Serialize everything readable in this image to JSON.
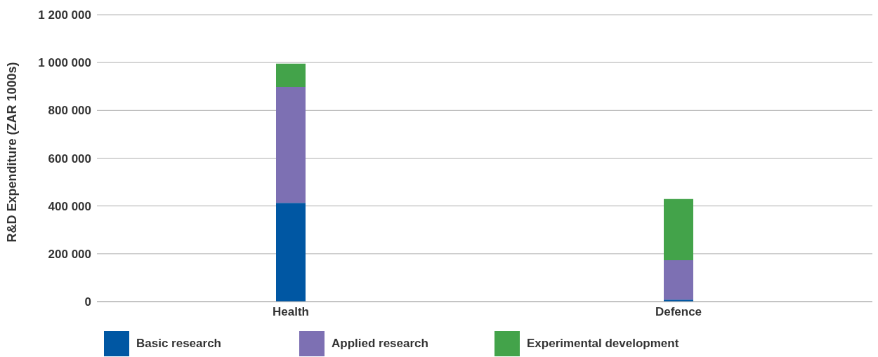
{
  "chart_data": {
    "type": "bar",
    "stacked": true,
    "ylabel": "R&D Expenditure (ZAR 1000s)",
    "categories": [
      "Health",
      "Defence"
    ],
    "series": [
      {
        "name": "Basic research",
        "color": "#0057a3",
        "values": [
          413000,
          8000
        ]
      },
      {
        "name": "Applied research",
        "color": "#7d70b3",
        "values": [
          485000,
          165000
        ]
      },
      {
        "name": "Experimental development",
        "color": "#43a34a",
        "values": [
          97000,
          256000
        ]
      }
    ],
    "ylim": [
      0,
      1200000
    ],
    "yticks": [
      {
        "value": 0,
        "label": "0"
      },
      {
        "value": 200000,
        "label": "200 000"
      },
      {
        "value": 400000,
        "label": "400 000"
      },
      {
        "value": 600000,
        "label": "600 000"
      },
      {
        "value": 800000,
        "label": "800 000"
      },
      {
        "value": 1000000,
        "label": "1 000 000"
      },
      {
        "value": 1200000,
        "label": "1 200 000"
      }
    ],
    "grid": "y",
    "legend": "bottom left"
  }
}
